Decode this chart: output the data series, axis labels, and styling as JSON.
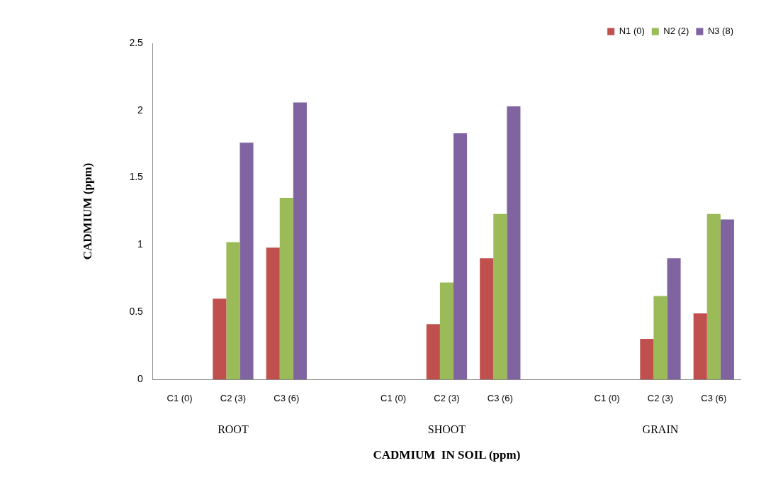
{
  "chart_data": {
    "type": "bar",
    "xlabel": "CADMIUM  IN SOIL (ppm)",
    "ylabel": "CADMIUM (ppm)",
    "categories": [
      "C1 (0)",
      "C2 (3)",
      "C3 (6)",
      null,
      "C1 (0)",
      "C2 (3)",
      "C3 (6)",
      null,
      "C1 (0)",
      "C2 (3)",
      "C3 (6)"
    ],
    "series": [
      {
        "name": "N1 (0)",
        "color": "#c0504d",
        "values": [
          0,
          0.6,
          0.98,
          null,
          0,
          0.41,
          0.9,
          null,
          0,
          0.3,
          0.49
        ]
      },
      {
        "name": "N2 (2)",
        "color": "#9bbb59",
        "values": [
          0,
          1.02,
          1.35,
          null,
          0,
          0.72,
          1.23,
          null,
          0,
          0.62,
          1.23
        ]
      },
      {
        "name": "N3 (8)",
        "color": "#8064a2",
        "values": [
          0,
          1.76,
          2.06,
          null,
          0,
          1.83,
          2.03,
          null,
          0,
          0.9,
          1.19
        ]
      }
    ],
    "annotations": [
      "ROOT",
      "SHOOT",
      "GRAIN"
    ],
    "ylim": [
      0,
      2.5
    ],
    "yticks": [
      0,
      0.5,
      1,
      1.5,
      2,
      2.5
    ],
    "grid": false,
    "legend": "top right"
  }
}
